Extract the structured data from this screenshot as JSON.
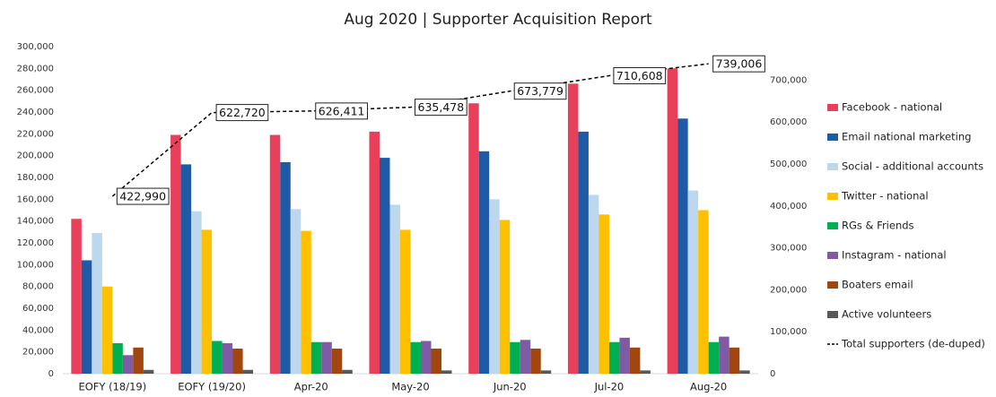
{
  "chart_data": {
    "type": "bar",
    "title": "Aug 2020 | Supporter Acquisition Report",
    "categories": [
      "EOFY (18/19)",
      "EOFY (19/20)",
      "Apr-20",
      "May-20",
      "Jun-20",
      "Jul-20",
      "Aug-20"
    ],
    "series": [
      {
        "name": "Facebook - national",
        "color": "#e8405a",
        "values": [
          142000,
          219000,
          219000,
          222000,
          248000,
          266000,
          280000
        ]
      },
      {
        "name": "Email  national marketing",
        "color": "#1f5aa6",
        "values": [
          104000,
          192000,
          194000,
          198000,
          204000,
          222000,
          234000
        ]
      },
      {
        "name": "Social - additional accounts",
        "color": "#bdd7ee",
        "values": [
          129000,
          149000,
          151000,
          155000,
          160000,
          164000,
          168000
        ]
      },
      {
        "name": "Twitter - national",
        "color": "#ffc000",
        "values": [
          80000,
          132000,
          131000,
          132000,
          141000,
          146000,
          150000
        ]
      },
      {
        "name": "RGs & Friends",
        "color": "#00b050",
        "values": [
          28000,
          30000,
          29000,
          29000,
          29000,
          29000,
          29000
        ]
      },
      {
        "name": "Instagram - national",
        "color": "#7f5ba6",
        "values": [
          17000,
          28000,
          29000,
          30000,
          31000,
          33000,
          34000
        ]
      },
      {
        "name": "Boaters email",
        "color": "#a0460e",
        "values": [
          24000,
          23000,
          23000,
          23000,
          23000,
          24000,
          24000
        ]
      },
      {
        "name": "Active volunteers",
        "color": "#595959",
        "values": [
          3500,
          3500,
          3500,
          3000,
          3000,
          3000,
          3000
        ]
      },
      {
        "name": "Total supporters (de-duped)",
        "type": "line",
        "axis": "y2",
        "color": "#000000",
        "values": [
          422990,
          622720,
          626411,
          635478,
          673779,
          710608,
          739006
        ],
        "value_labels": [
          "422,990",
          "622,720",
          "626,411",
          "635,478",
          "673,779",
          "710,608",
          "739,006"
        ]
      }
    ],
    "ylim": [
      0,
      300000
    ],
    "yticks": [
      {
        "value": 0,
        "label": "0"
      },
      {
        "value": 20000,
        "label": "20,000"
      },
      {
        "value": 40000,
        "label": "40,000"
      },
      {
        "value": 60000,
        "label": "60,000"
      },
      {
        "value": 80000,
        "label": "80,000"
      },
      {
        "value": 100000,
        "label": "100,000"
      },
      {
        "value": 120000,
        "label": "120,000"
      },
      {
        "value": 140000,
        "label": "140,000"
      },
      {
        "value": 160000,
        "label": "160,000"
      },
      {
        "value": 180000,
        "label": "180,000"
      },
      {
        "value": 200000,
        "label": "200,000"
      },
      {
        "value": 220000,
        "label": "220,000"
      },
      {
        "value": 240000,
        "label": "240,000"
      },
      {
        "value": 260000,
        "label": "260,000"
      },
      {
        "value": 280000,
        "label": "280,000"
      },
      {
        "value": 300000,
        "label": "300,000"
      }
    ],
    "y2lim": [
      0,
      780000
    ],
    "y2ticks": [
      {
        "value": 0,
        "label": "0"
      },
      {
        "value": 100000,
        "label": "100,000"
      },
      {
        "value": 200000,
        "label": "200,000"
      },
      {
        "value": 300000,
        "label": "300,000"
      },
      {
        "value": 400000,
        "label": "400,000"
      },
      {
        "value": 500000,
        "label": "500,000"
      },
      {
        "value": 600000,
        "label": "600,000"
      },
      {
        "value": 700000,
        "label": "700,000"
      }
    ],
    "legend": "right"
  }
}
